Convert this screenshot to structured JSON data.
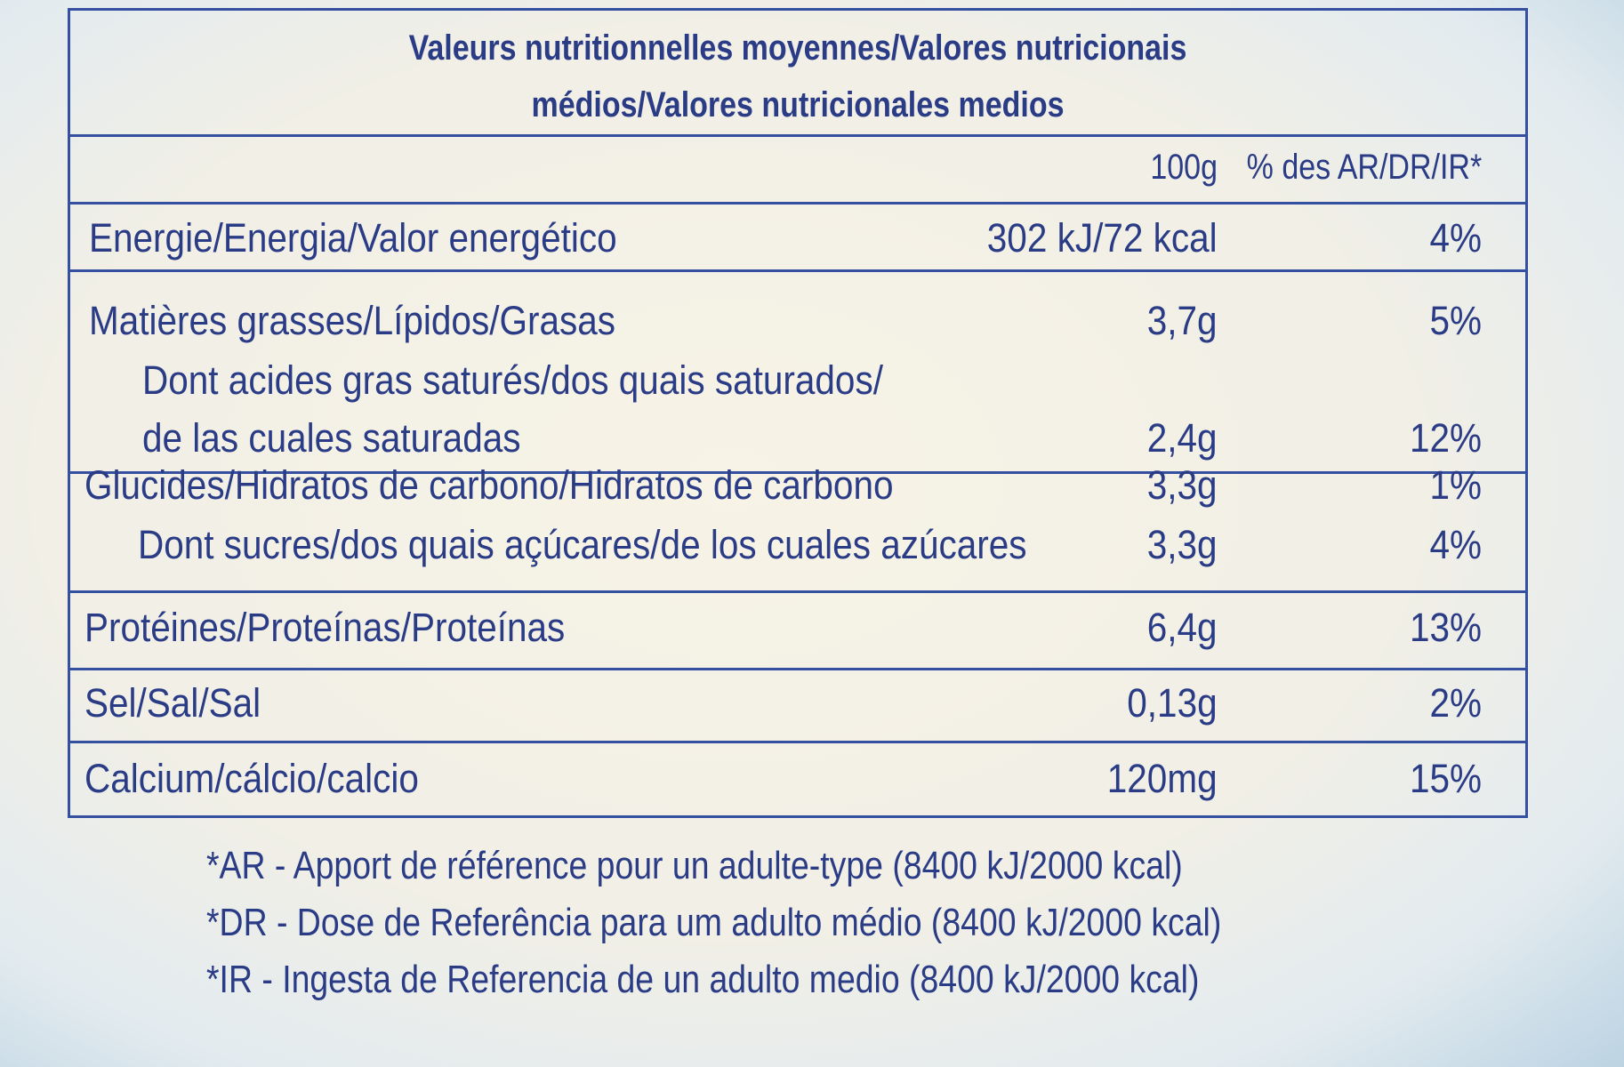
{
  "header": {
    "title_lines": [
      "Valeurs nutritionnelles moyennes/Valores nutricionais",
      "médios/Valores nutricionales medios"
    ]
  },
  "table": {
    "columns": [
      "100g",
      "% des AR/DR/IR*"
    ],
    "rows": [
      {
        "label": [
          "Energie/Energia/Valor energético"
        ],
        "value": "302 kJ/72 kcal",
        "percent": "4%"
      },
      {
        "label": [
          "Matières grasses/Lípidos/Grasas"
        ],
        "value": "3,7g",
        "percent": "5%"
      },
      {
        "label": [
          "Dont acides gras saturés/dos quais saturados/",
          "de las cuales saturadas"
        ],
        "value": "2,4g",
        "percent": "12%"
      },
      {
        "label": [
          "Glucides/Hidratos de carbono/Hidratos de carbono"
        ],
        "value": "3,3g",
        "percent": "1%"
      },
      {
        "label": [
          "Dont sucres/dos quais açúcares/de los cuales azúcares"
        ],
        "value": "3,3g",
        "percent": "4%"
      },
      {
        "label": [
          "Protéines/Proteínas/Proteínas"
        ],
        "value": "6,4g",
        "percent": "13%"
      },
      {
        "label": [
          "Sel/Sal/Sal"
        ],
        "value": "0,13g",
        "percent": "2%"
      },
      {
        "label": [
          "Calcium/cálcio/calcio"
        ],
        "value": "120mg",
        "percent": "15%"
      }
    ]
  },
  "footnotes": [
    "*AR - Apport de référence pour un adulte-type (8400 kJ/2000 kcal)",
    "*DR - Dose de Referência para um adulto médio (8400 kJ/2000 kcal)",
    "*IR - Ingesta de Referencia de un adulto medio (8400 kJ/2000 kcal)"
  ]
}
